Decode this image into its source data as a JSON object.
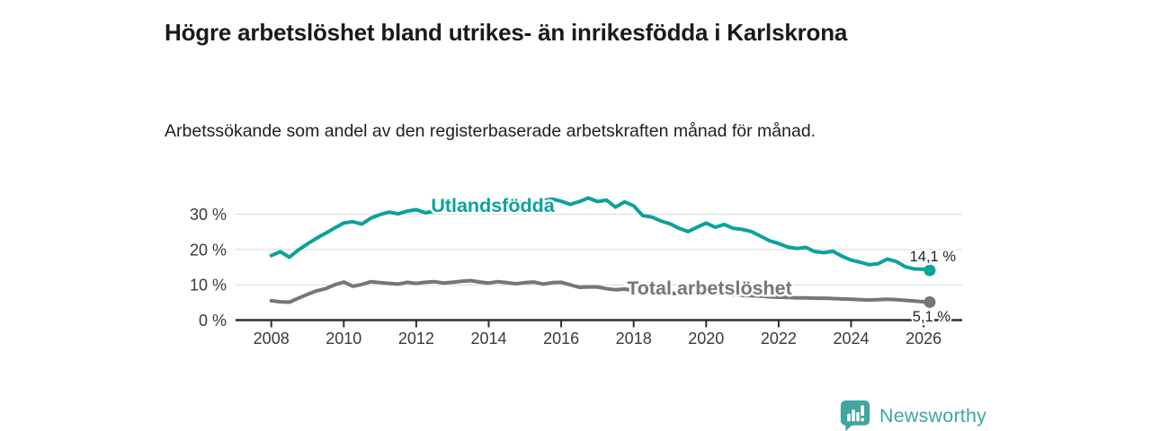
{
  "header": {
    "title": "Högre arbetslöshet bland utrikes- än inrikesfödda i Karlskrona",
    "subtitle": "Arbetssökande som andel av den registerbaserade arbetskraften månad för månad."
  },
  "chart_data": {
    "type": "line",
    "title": "Högre arbetslöshet bland utrikes- än inrikesfödda i Karlskrona",
    "subtitle": "Arbetssökande som andel av den registerbaserade arbetskraften månad för månad.",
    "xlabel": "",
    "ylabel": "",
    "xlim": [
      2007,
      2027
    ],
    "ylim": [
      0,
      38
    ],
    "grid": "horizontal",
    "legend_position": "inline-labels",
    "x_ticks": [
      2008,
      2010,
      2012,
      2014,
      2016,
      2018,
      2020,
      2022,
      2024,
      2026
    ],
    "y_ticks": [
      {
        "value": 0,
        "label": "0 %"
      },
      {
        "value": 10,
        "label": "10 %"
      },
      {
        "value": 20,
        "label": "20 %"
      },
      {
        "value": 30,
        "label": "30 %"
      }
    ],
    "x": [
      2008,
      2008.25,
      2008.5,
      2008.75,
      2009,
      2009.25,
      2009.5,
      2009.75,
      2010,
      2010.25,
      2010.5,
      2010.75,
      2011,
      2011.25,
      2011.5,
      2011.75,
      2012,
      2012.25,
      2012.5,
      2012.75,
      2013,
      2013.25,
      2013.5,
      2013.75,
      2014,
      2014.25,
      2014.5,
      2014.75,
      2015,
      2015.25,
      2015.5,
      2015.75,
      2016,
      2016.25,
      2016.5,
      2016.75,
      2017,
      2017.25,
      2017.5,
      2017.75,
      2018,
      2018.25,
      2018.5,
      2018.75,
      2019,
      2019.25,
      2019.5,
      2019.75,
      2020,
      2020.25,
      2020.5,
      2020.75,
      2021,
      2021.25,
      2021.5,
      2021.75,
      2022,
      2022.25,
      2022.5,
      2022.75,
      2023,
      2023.25,
      2023.5,
      2023.75,
      2024,
      2024.25,
      2024.5,
      2024.75,
      2025,
      2025.25,
      2025.5,
      2025.75,
      2026,
      2026.17
    ],
    "series": [
      {
        "name": "Utlandsfödda",
        "label": "Utlandsfödda",
        "color": "#0ba29a",
        "end_label": "14,1 %",
        "end_value": 14.1,
        "values": [
          18.3,
          19.4,
          17.8,
          19.9,
          21.6,
          23.2,
          24.6,
          26.1,
          27.5,
          27.9,
          27.2,
          28.9,
          29.9,
          30.6,
          30.1,
          30.9,
          31.3,
          30.4,
          30.9,
          31.6,
          31.1,
          31.9,
          32.3,
          31.8,
          32.5,
          32.9,
          32.3,
          33.1,
          33.5,
          33.1,
          33.9,
          34.3,
          33.7,
          32.8,
          33.6,
          34.6,
          33.6,
          34.0,
          32.0,
          33.5,
          32.4,
          29.6,
          29.2,
          28.1,
          27.3,
          26.0,
          25.1,
          26.3,
          27.5,
          26.3,
          27.1,
          26.0,
          25.7,
          25.1,
          23.8,
          22.5,
          21.7,
          20.7,
          20.3,
          20.6,
          19.4,
          19.1,
          19.5,
          18.1,
          17.0,
          16.4,
          15.7,
          16.0,
          17.3,
          16.6,
          15.1,
          14.5,
          14.4,
          14.1
        ]
      },
      {
        "name": "Total arbetslöshet",
        "label": "Total arbetslöshet",
        "color": "#76757b",
        "end_label": "5,1 %",
        "end_value": 5.1,
        "values": [
          5.5,
          5.2,
          5.1,
          6.2,
          7.3,
          8.3,
          8.9,
          10.0,
          10.8,
          9.6,
          10.1,
          10.9,
          10.6,
          10.4,
          10.2,
          10.7,
          10.4,
          10.7,
          10.9,
          10.5,
          10.7,
          11.0,
          11.2,
          10.8,
          10.5,
          10.9,
          10.6,
          10.3,
          10.6,
          10.8,
          10.2,
          10.6,
          10.7,
          10.0,
          9.3,
          9.4,
          9.4,
          8.9,
          8.6,
          8.8,
          8.4,
          8.2,
          7.9,
          7.7,
          7.6,
          7.5,
          7.4,
          7.5,
          7.7,
          7.6,
          7.4,
          7.2,
          7.0,
          6.9,
          6.8,
          6.6,
          6.5,
          6.4,
          6.3,
          6.3,
          6.2,
          6.2,
          6.1,
          6.0,
          5.9,
          5.8,
          5.7,
          5.8,
          5.9,
          5.8,
          5.6,
          5.4,
          5.2,
          5.1
        ]
      }
    ]
  },
  "footer": {
    "brand": "Newsworthy"
  },
  "colors": {
    "series_foreign_born": "#0ba29a",
    "series_total": "#76757b",
    "grid": "#d8d8d8",
    "axis": "#2f2f2f",
    "axis_text": "#3a3a3a",
    "end_label_text": "#222222",
    "brand_teal": "#40a69f",
    "background": "#ffffff"
  }
}
